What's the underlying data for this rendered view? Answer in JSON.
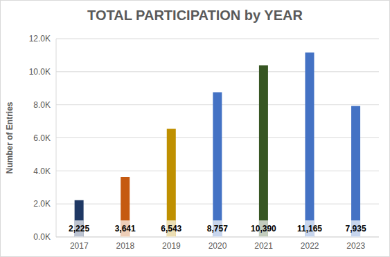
{
  "chart_data": {
    "type": "bar",
    "title": "TOTAL PARTICIPATION by YEAR",
    "y_label": "Number of Entries",
    "categories": [
      "2017",
      "2018",
      "2019",
      "2020",
      "2021",
      "2022",
      "2023"
    ],
    "values": [
      2225,
      3641,
      6543,
      8757,
      10390,
      11165,
      7935
    ],
    "value_labels": [
      "2,225",
      "3,641",
      "6,543",
      "8,757",
      "10,390",
      "11,165",
      "7,935"
    ],
    "colors": [
      "#1f3864",
      "#c55a11",
      "#bf9000",
      "#4472c4",
      "#375623",
      "#4472c4",
      "#4472c4"
    ],
    "ylim": [
      0,
      12000
    ],
    "yticks": [
      {
        "value": 0,
        "label": "0.0K"
      },
      {
        "value": 2000,
        "label": "2.0K"
      },
      {
        "value": 4000,
        "label": "4.0K"
      },
      {
        "value": 6000,
        "label": "6.0K"
      },
      {
        "value": 8000,
        "label": "8.0K"
      },
      {
        "value": 10000,
        "label": "10.0K"
      },
      {
        "value": 12000,
        "label": "12.0K"
      }
    ],
    "grid": true,
    "data_labels": true
  }
}
